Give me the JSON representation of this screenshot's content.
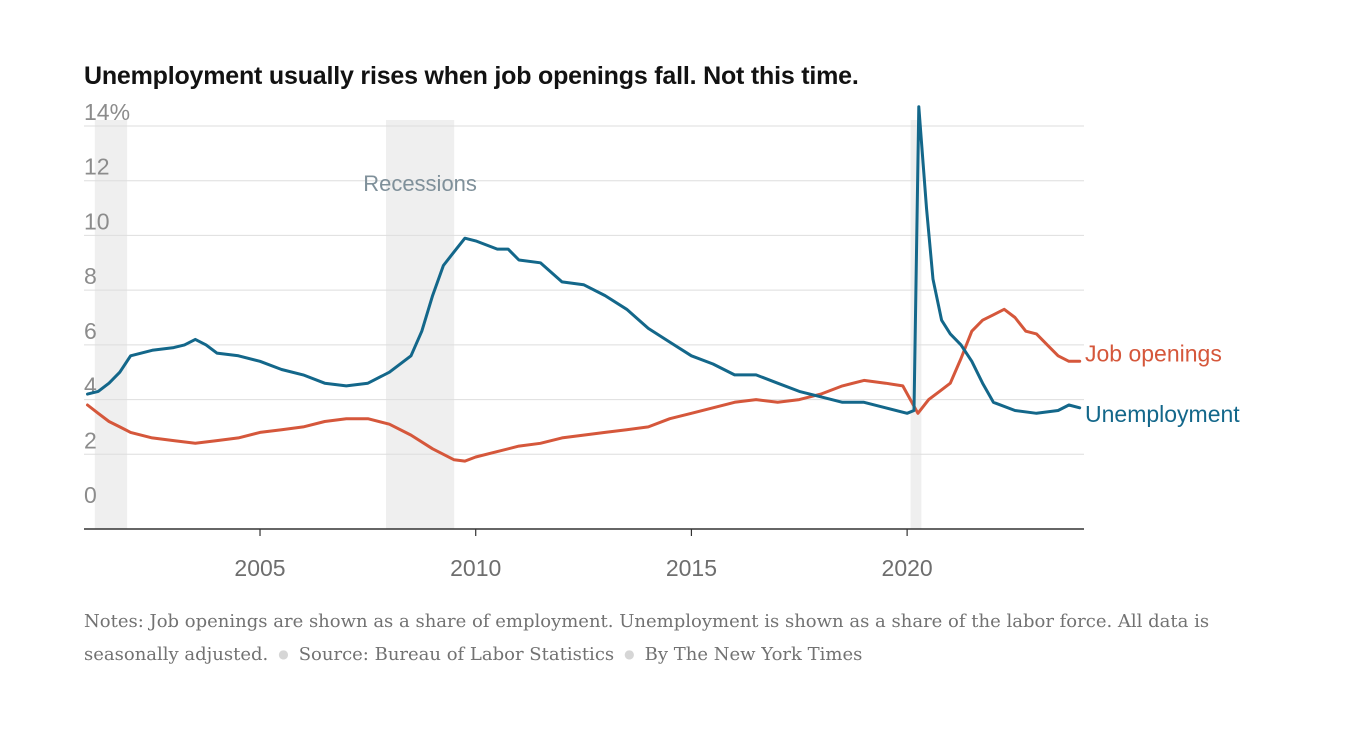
{
  "title": "Unemployment usually rises when job openings fall. Not this time.",
  "footer": {
    "notes": "Notes: Job openings are shown as a share of employment. Unemployment is shown as a share of the labor force. All data is seasonally adjusted.",
    "source": "Source: Bureau of Labor Statistics",
    "credit": "By The New York Times"
  },
  "chart_data": {
    "type": "line",
    "title": "Unemployment usually rises when job openings fall. Not this time.",
    "xlabel": "",
    "ylabel": "",
    "xlim": [
      2000.92,
      2024.1
    ],
    "ylim": [
      0,
      14
    ],
    "x_ticks": [
      "2005",
      "2010",
      "2015",
      "2020"
    ],
    "x_tick_values": [
      2005,
      2010,
      2015,
      2020
    ],
    "y_ticks": [
      "0",
      "2",
      "4",
      "6",
      "8",
      "10",
      "12",
      "14%"
    ],
    "y_tick_values": [
      0,
      2,
      4,
      6,
      8,
      10,
      12,
      14
    ],
    "grid": true,
    "recessions": {
      "label": "Recessions",
      "periods": [
        [
          2001.17,
          2001.92
        ],
        [
          2007.92,
          2009.5
        ],
        [
          2020.08,
          2020.33
        ]
      ],
      "color": "#efefef"
    },
    "series": [
      {
        "name": "Job openings",
        "color": "#d5573b",
        "points": [
          [
            2001.0,
            3.8
          ],
          [
            2001.25,
            3.5
          ],
          [
            2001.5,
            3.2
          ],
          [
            2001.75,
            3.0
          ],
          [
            2002.0,
            2.8
          ],
          [
            2002.5,
            2.6
          ],
          [
            2003.0,
            2.5
          ],
          [
            2003.5,
            2.4
          ],
          [
            2004.0,
            2.5
          ],
          [
            2004.5,
            2.6
          ],
          [
            2005.0,
            2.8
          ],
          [
            2005.5,
            2.9
          ],
          [
            2006.0,
            3.0
          ],
          [
            2006.5,
            3.2
          ],
          [
            2007.0,
            3.3
          ],
          [
            2007.5,
            3.3
          ],
          [
            2008.0,
            3.1
          ],
          [
            2008.5,
            2.7
          ],
          [
            2009.0,
            2.2
          ],
          [
            2009.5,
            1.8
          ],
          [
            2009.75,
            1.75
          ],
          [
            2010.0,
            1.9
          ],
          [
            2010.5,
            2.1
          ],
          [
            2011.0,
            2.3
          ],
          [
            2011.5,
            2.4
          ],
          [
            2012.0,
            2.6
          ],
          [
            2012.5,
            2.7
          ],
          [
            2013.0,
            2.8
          ],
          [
            2013.5,
            2.9
          ],
          [
            2014.0,
            3.0
          ],
          [
            2014.5,
            3.3
          ],
          [
            2015.0,
            3.5
          ],
          [
            2015.5,
            3.7
          ],
          [
            2016.0,
            3.9
          ],
          [
            2016.5,
            4.0
          ],
          [
            2017.0,
            3.9
          ],
          [
            2017.5,
            4.0
          ],
          [
            2018.0,
            4.2
          ],
          [
            2018.5,
            4.5
          ],
          [
            2019.0,
            4.7
          ],
          [
            2019.5,
            4.6
          ],
          [
            2019.9,
            4.5
          ],
          [
            2020.25,
            3.5
          ],
          [
            2020.5,
            4.0
          ],
          [
            2020.75,
            4.3
          ],
          [
            2021.0,
            4.6
          ],
          [
            2021.25,
            5.5
          ],
          [
            2021.5,
            6.5
          ],
          [
            2021.75,
            6.9
          ],
          [
            2022.0,
            7.1
          ],
          [
            2022.25,
            7.3
          ],
          [
            2022.5,
            7.0
          ],
          [
            2022.75,
            6.5
          ],
          [
            2023.0,
            6.4
          ],
          [
            2023.25,
            6.0
          ],
          [
            2023.5,
            5.6
          ],
          [
            2023.75,
            5.4
          ],
          [
            2024.0,
            5.4
          ]
        ]
      },
      {
        "name": "Unemployment",
        "color": "#13678a",
        "points": [
          [
            2001.0,
            4.2
          ],
          [
            2001.25,
            4.3
          ],
          [
            2001.5,
            4.6
          ],
          [
            2001.75,
            5.0
          ],
          [
            2002.0,
            5.6
          ],
          [
            2002.5,
            5.8
          ],
          [
            2003.0,
            5.9
          ],
          [
            2003.25,
            6.0
          ],
          [
            2003.5,
            6.2
          ],
          [
            2003.75,
            6.0
          ],
          [
            2004.0,
            5.7
          ],
          [
            2004.5,
            5.6
          ],
          [
            2005.0,
            5.4
          ],
          [
            2005.5,
            5.1
          ],
          [
            2006.0,
            4.9
          ],
          [
            2006.5,
            4.6
          ],
          [
            2007.0,
            4.5
          ],
          [
            2007.5,
            4.6
          ],
          [
            2008.0,
            5.0
          ],
          [
            2008.5,
            5.6
          ],
          [
            2008.75,
            6.5
          ],
          [
            2009.0,
            7.8
          ],
          [
            2009.25,
            8.9
          ],
          [
            2009.5,
            9.4
          ],
          [
            2009.75,
            9.9
          ],
          [
            2010.0,
            9.8
          ],
          [
            2010.5,
            9.5
          ],
          [
            2010.75,
            9.5
          ],
          [
            2011.0,
            9.1
          ],
          [
            2011.5,
            9.0
          ],
          [
            2012.0,
            8.3
          ],
          [
            2012.5,
            8.2
          ],
          [
            2013.0,
            7.8
          ],
          [
            2013.5,
            7.3
          ],
          [
            2014.0,
            6.6
          ],
          [
            2014.5,
            6.1
          ],
          [
            2015.0,
            5.6
          ],
          [
            2015.5,
            5.3
          ],
          [
            2016.0,
            4.9
          ],
          [
            2016.5,
            4.9
          ],
          [
            2017.0,
            4.6
          ],
          [
            2017.5,
            4.3
          ],
          [
            2018.0,
            4.1
          ],
          [
            2018.5,
            3.9
          ],
          [
            2019.0,
            3.9
          ],
          [
            2019.5,
            3.7
          ],
          [
            2020.0,
            3.5
          ],
          [
            2020.16,
            3.6
          ],
          [
            2020.27,
            14.7
          ],
          [
            2020.45,
            11.0
          ],
          [
            2020.6,
            8.4
          ],
          [
            2020.8,
            6.9
          ],
          [
            2021.0,
            6.4
          ],
          [
            2021.25,
            6.0
          ],
          [
            2021.5,
            5.4
          ],
          [
            2021.75,
            4.6
          ],
          [
            2022.0,
            3.9
          ],
          [
            2022.5,
            3.6
          ],
          [
            2023.0,
            3.5
          ],
          [
            2023.5,
            3.6
          ],
          [
            2023.75,
            3.8
          ],
          [
            2024.0,
            3.7
          ]
        ]
      }
    ]
  }
}
